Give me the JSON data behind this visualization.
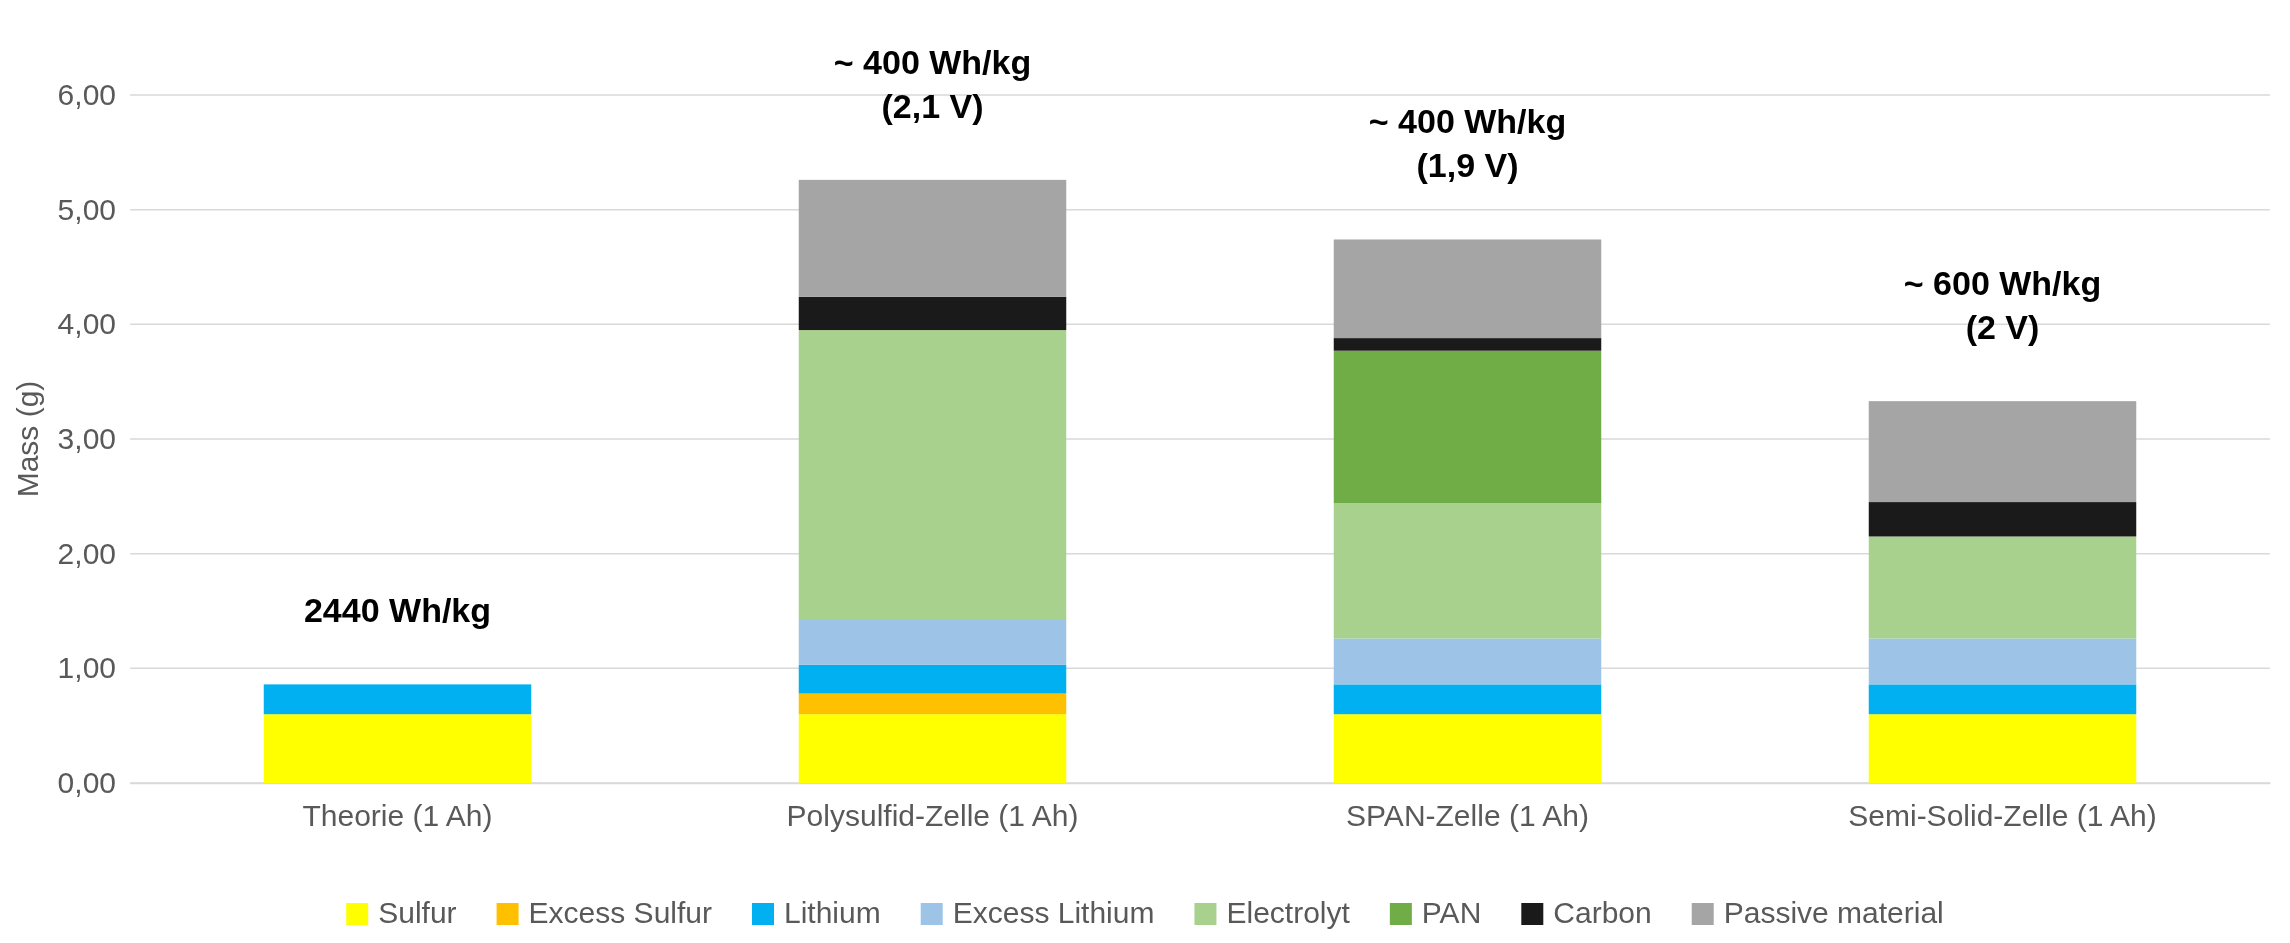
{
  "chart_data": {
    "type": "bar",
    "stacked": true,
    "ylabel": "Mass (g)",
    "categories": [
      "Theorie (1 Ah)",
      "Polysulfid-Zelle (1 Ah)",
      "SPAN-Zelle (1 Ah)",
      "Semi-Solid-Zelle (1 Ah)"
    ],
    "series": [
      {
        "name": "Sulfur",
        "color": "#ffff00",
        "values": [
          0.6,
          0.6,
          0.6,
          0.6
        ]
      },
      {
        "name": "Excess Sulfur",
        "color": "#ffc000",
        "values": [
          null,
          0.18,
          null,
          null
        ]
      },
      {
        "name": "Lithium",
        "color": "#00b0f0",
        "values": [
          0.26,
          0.25,
          0.26,
          0.26
        ]
      },
      {
        "name": "Excess Lithium",
        "color": "#9dc3e6",
        "values": [
          null,
          0.4,
          0.4,
          0.4
        ]
      },
      {
        "name": "Electrolyt",
        "color": "#a9d18e",
        "values": [
          null,
          2.52,
          1.18,
          0.89
        ]
      },
      {
        "name": "PAN",
        "color": "#70ad47",
        "values": [
          null,
          null,
          1.33,
          null
        ]
      },
      {
        "name": "Carbon",
        "color": "#1a1a1a",
        "values": [
          null,
          0.29,
          0.11,
          0.3
        ]
      },
      {
        "name": "Passive material",
        "color": "#a5a5a5",
        "values": [
          null,
          1.02,
          0.86,
          0.88
        ]
      }
    ],
    "ylim": [
      0,
      6
    ],
    "yticks": [
      {
        "value": 0,
        "label": "0,00"
      },
      {
        "value": 1,
        "label": "1,00"
      },
      {
        "value": 2,
        "label": "2,00"
      },
      {
        "value": 3,
        "label": "3,00"
      },
      {
        "value": 4,
        "label": "4,00"
      },
      {
        "value": 5,
        "label": "5,00"
      },
      {
        "value": 6,
        "label": "6,00"
      }
    ],
    "grid": "y",
    "legend": "bottom",
    "annotations": [
      "2440 Wh/kg",
      "~ 400 Wh/kg\n(2,1 V)",
      "~ 400 Wh/kg\n(1,9 V)",
      "~  600 Wh/kg\n(2 V)"
    ]
  }
}
